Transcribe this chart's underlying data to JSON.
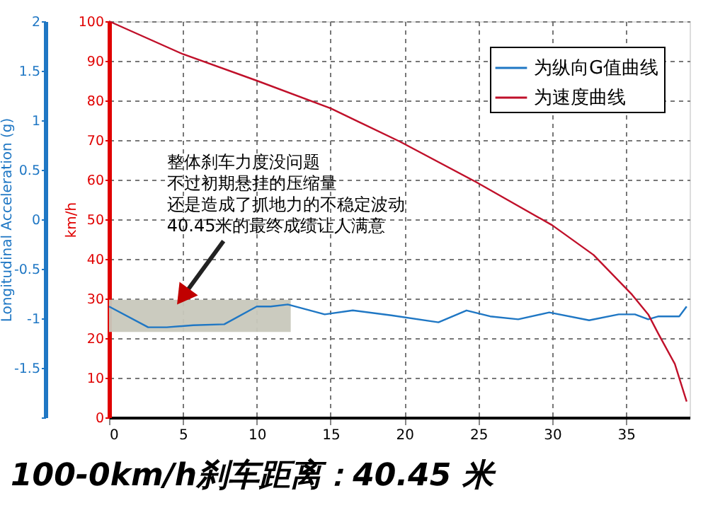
{
  "chart_data": {
    "type": "line",
    "title": "100-0km/h刹车距离：40.45 米",
    "ylabel": "Longitudinal Acceleration (g)",
    "y2label": "km/h",
    "xlim": [
      0,
      39.3
    ],
    "xticks": [
      0,
      5,
      10,
      15,
      20,
      25,
      30,
      35
    ],
    "ylim": [
      -2,
      2
    ],
    "yticks": [
      {
        "value": -2,
        "label": null
      },
      -1.5,
      -1,
      -0.5,
      0,
      0.5,
      1,
      1.5,
      2
    ],
    "y2lim": [
      0,
      100
    ],
    "y2ticks": [
      0,
      10,
      20,
      30,
      40,
      50,
      60,
      70,
      80,
      90,
      100
    ],
    "grid": true,
    "legend": "top right",
    "line_style": "solid",
    "marker": "none",
    "series": [
      {
        "name": "为纵向G值曲线",
        "color": "#1f77c4",
        "x": [
          0,
          2.65,
          3.9,
          5.7,
          7.8,
          10,
          10.95,
          12.1,
          14.6,
          16.5,
          19.1,
          22.3,
          24.2,
          25.8,
          27.7,
          29.8,
          32.5,
          34.5,
          35.6,
          36.5,
          37.2,
          38.6,
          39.1
        ],
        "values": [
          -0.88,
          -1.09,
          -1.09,
          -1.07,
          -1.06,
          -0.88,
          -0.88,
          -0.86,
          -0.96,
          -0.92,
          -0.97,
          -1.04,
          -0.92,
          -0.98,
          -1.01,
          -0.94,
          -1.02,
          -0.96,
          -0.96,
          -1.01,
          -0.98,
          -0.98,
          -0.88
        ]
      },
      {
        "name": "为速度曲线",
        "color": "#c0102a",
        "axis": "y2",
        "x": [
          0,
          5,
          10,
          15,
          19.7,
          24.8,
          30,
          32.8,
          35.4,
          36.5,
          37.2,
          38.3,
          39.1
        ],
        "values": [
          100,
          91.7,
          85,
          78,
          69.6,
          59.5,
          48.5,
          41,
          31,
          26,
          21,
          13.5,
          4
        ]
      }
    ],
    "bands": [
      {
        "axis": "x",
        "from": 0,
        "to": 12.3,
        "color": "#c8c8bc"
      }
    ],
    "annotations": [
      "整体刹车力度没问题",
      "不过初期悬挂的压缩量",
      "还是造成了抓地力的不稳定波动",
      {
        "text": "40.45米的最终成绩让人满意",
        "x": 5,
        "y": -0.78
      }
    ]
  }
}
